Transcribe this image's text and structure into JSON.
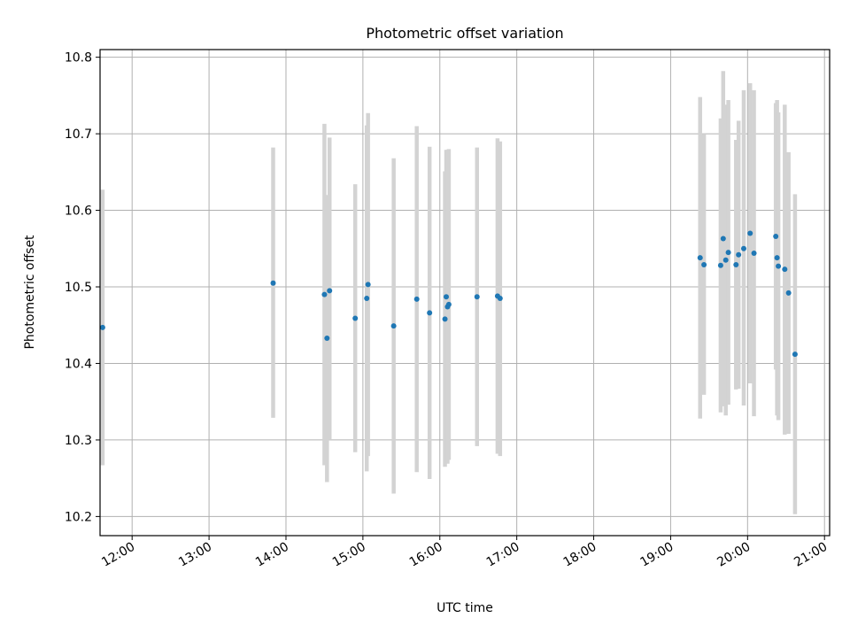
{
  "chart_data": {
    "type": "scatter",
    "title": "Photometric offset variation",
    "xlabel": "UTC time",
    "ylabel": "Photometric offset",
    "grid": true,
    "xlim": [
      "11:35",
      "21:04"
    ],
    "ylim": [
      10.175,
      10.81
    ],
    "x_ticks": [
      "12:00",
      "13:00",
      "14:00",
      "15:00",
      "16:00",
      "17:00",
      "18:00",
      "19:00",
      "20:00",
      "21:00"
    ],
    "y_ticks": [
      10.2,
      10.3,
      10.4,
      10.5,
      10.6,
      10.7,
      10.8
    ],
    "errorbar_color": "#d3d3d3",
    "point_color": "#1f77b4",
    "points": [
      {
        "x": "11:37",
        "y": 10.447,
        "lo": 10.267,
        "hi": 10.627
      },
      {
        "x": "13:50",
        "y": 10.505,
        "lo": 10.329,
        "hi": 10.682
      },
      {
        "x": "14:30",
        "y": 10.49,
        "lo": 10.267,
        "hi": 10.713
      },
      {
        "x": "14:32",
        "y": 10.433,
        "lo": 10.245,
        "hi": 10.62
      },
      {
        "x": "14:34",
        "y": 10.495,
        "lo": 10.3,
        "hi": 10.695
      },
      {
        "x": "14:54",
        "y": 10.459,
        "lo": 10.284,
        "hi": 10.634
      },
      {
        "x": "15:03",
        "y": 10.485,
        "lo": 10.259,
        "hi": 10.711
      },
      {
        "x": "15:04",
        "y": 10.503,
        "lo": 10.279,
        "hi": 10.727
      },
      {
        "x": "15:24",
        "y": 10.449,
        "lo": 10.23,
        "hi": 10.668
      },
      {
        "x": "15:42",
        "y": 10.484,
        "lo": 10.258,
        "hi": 10.71
      },
      {
        "x": "15:52",
        "y": 10.466,
        "lo": 10.249,
        "hi": 10.683
      },
      {
        "x": "16:04",
        "y": 10.458,
        "lo": 10.265,
        "hi": 10.651
      },
      {
        "x": "16:05",
        "y": 10.487,
        "lo": 10.295,
        "hi": 10.679
      },
      {
        "x": "16:06",
        "y": 10.474,
        "lo": 10.269,
        "hi": 10.679
      },
      {
        "x": "16:07",
        "y": 10.477,
        "lo": 10.274,
        "hi": 10.68
      },
      {
        "x": "16:29",
        "y": 10.487,
        "lo": 10.292,
        "hi": 10.682
      },
      {
        "x": "16:45",
        "y": 10.488,
        "lo": 10.282,
        "hi": 10.694
      },
      {
        "x": "16:47",
        "y": 10.485,
        "lo": 10.279,
        "hi": 10.69
      },
      {
        "x": "19:23",
        "y": 10.538,
        "lo": 10.328,
        "hi": 10.748
      },
      {
        "x": "19:26",
        "y": 10.529,
        "lo": 10.359,
        "hi": 10.699
      },
      {
        "x": "19:39",
        "y": 10.528,
        "lo": 10.336,
        "hi": 10.72
      },
      {
        "x": "19:41",
        "y": 10.563,
        "lo": 10.344,
        "hi": 10.782
      },
      {
        "x": "19:43",
        "y": 10.535,
        "lo": 10.332,
        "hi": 10.738
      },
      {
        "x": "19:45",
        "y": 10.545,
        "lo": 10.346,
        "hi": 10.744
      },
      {
        "x": "19:51",
        "y": 10.529,
        "lo": 10.366,
        "hi": 10.692
      },
      {
        "x": "19:53",
        "y": 10.542,
        "lo": 10.367,
        "hi": 10.717
      },
      {
        "x": "19:57",
        "y": 10.55,
        "lo": 10.345,
        "hi": 10.757
      },
      {
        "x": "20:02",
        "y": 10.57,
        "lo": 10.374,
        "hi": 10.766
      },
      {
        "x": "20:05",
        "y": 10.544,
        "lo": 10.331,
        "hi": 10.757
      },
      {
        "x": "20:22",
        "y": 10.566,
        "lo": 10.392,
        "hi": 10.74
      },
      {
        "x": "20:23",
        "y": 10.538,
        "lo": 10.332,
        "hi": 10.744
      },
      {
        "x": "20:24",
        "y": 10.527,
        "lo": 10.326,
        "hi": 10.728
      },
      {
        "x": "20:29",
        "y": 10.523,
        "lo": 10.307,
        "hi": 10.738
      },
      {
        "x": "20:32",
        "y": 10.492,
        "lo": 10.308,
        "hi": 10.676
      },
      {
        "x": "20:37",
        "y": 10.412,
        "lo": 10.203,
        "hi": 10.621
      }
    ]
  }
}
